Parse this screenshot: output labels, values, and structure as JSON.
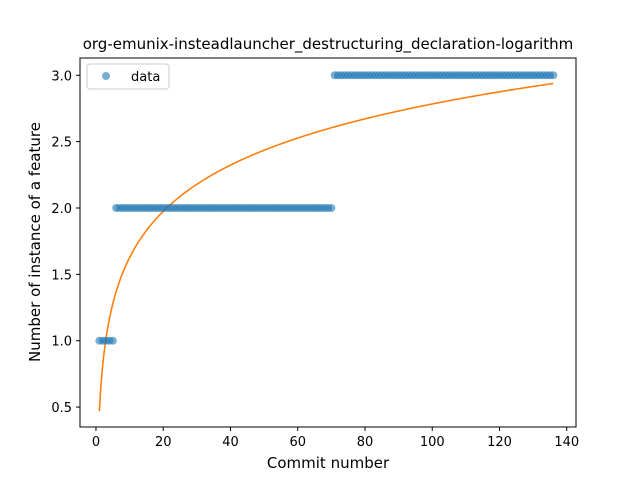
{
  "chart_data": {
    "type": "scatter",
    "title": "org-emunix-insteadlauncher_destructuring_declaration-logarithm",
    "xlabel": "Commit number",
    "ylabel": "Number of instance of a feature",
    "xlim": [
      -4.75,
      142.75
    ],
    "ylim": [
      0.35,
      3.13
    ],
    "xticks": [
      0,
      20,
      40,
      60,
      80,
      100,
      120,
      140
    ],
    "yticks": [
      0.5,
      1.0,
      1.5,
      2.0,
      2.5,
      3.0
    ],
    "xtick_labels": [
      "0",
      "20",
      "40",
      "60",
      "80",
      "100",
      "120",
      "140"
    ],
    "ytick_labels": [
      "0.5",
      "1.0",
      "1.5",
      "2.0",
      "2.5",
      "3.0"
    ],
    "legend": {
      "position": "upper-left",
      "entries": [
        "data"
      ]
    },
    "grid": false,
    "series": [
      {
        "name": "data",
        "kind": "points",
        "color": "#1f77b4",
        "points": [
          {
            "x_from": 1,
            "x_to": 5,
            "y": 1
          },
          {
            "x_from": 6,
            "x_to": 70,
            "y": 2
          },
          {
            "x_from": 71,
            "x_to": 136,
            "y": 3
          }
        ]
      },
      {
        "kind": "fit",
        "color": "#ff7f0e",
        "formula": "y = 0.4695 + 0.5025 * ln(x)",
        "coefficients": {
          "a": 0.4695,
          "b": 0.5025
        },
        "x_range": [
          1,
          136
        ]
      }
    ]
  }
}
